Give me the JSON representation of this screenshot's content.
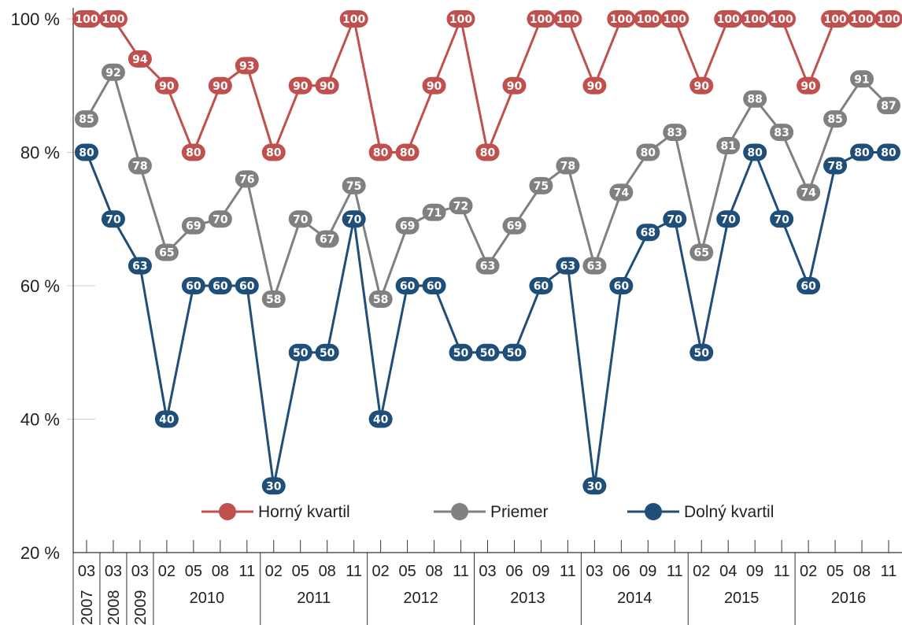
{
  "chart_data": {
    "type": "line",
    "y_axis": {
      "ylim": [
        20,
        100
      ],
      "ticks": [
        {
          "value": 20,
          "label": "20 %"
        },
        {
          "value": 40,
          "label": "40 %"
        },
        {
          "value": 60,
          "label": "60 %"
        },
        {
          "value": 80,
          "label": "80 %"
        },
        {
          "value": 100,
          "label": "100 %"
        }
      ],
      "grid": true
    },
    "categories": [
      "03",
      "03",
      "03",
      "02",
      "05",
      "08",
      "11",
      "02",
      "05",
      "08",
      "11",
      "02",
      "05",
      "08",
      "11",
      "03",
      "06",
      "09",
      "11",
      "03",
      "06",
      "09",
      "11",
      "02",
      "04",
      "09",
      "11",
      "02",
      "05",
      "08",
      "11"
    ],
    "year_groups": [
      {
        "label": "2007",
        "count": 1,
        "rotated": true
      },
      {
        "label": "2008",
        "count": 1,
        "rotated": true
      },
      {
        "label": "2009",
        "count": 1,
        "rotated": true
      },
      {
        "label": "2010",
        "count": 4,
        "rotated": false
      },
      {
        "label": "2011",
        "count": 4,
        "rotated": false
      },
      {
        "label": "2012",
        "count": 4,
        "rotated": false
      },
      {
        "label": "2013",
        "count": 4,
        "rotated": false
      },
      {
        "label": "2014",
        "count": 4,
        "rotated": false
      },
      {
        "label": "2015",
        "count": 4,
        "rotated": false
      },
      {
        "label": "2016",
        "count": 4,
        "rotated": false
      }
    ],
    "series": [
      {
        "name": "Horný kvartil",
        "color": "#c0504d",
        "values": [
          100,
          100,
          94,
          90,
          80,
          90,
          93,
          80,
          90,
          90,
          100,
          80,
          80,
          90,
          100,
          80,
          90,
          100,
          100,
          90,
          100,
          100,
          100,
          90,
          100,
          100,
          100,
          90,
          100,
          100,
          100
        ],
        "labels": [
          "100",
          "100",
          "94",
          "90",
          "80",
          "90",
          "93",
          "80",
          "90",
          "90",
          "100",
          "80",
          "80",
          "90",
          "100",
          "80",
          "90",
          "100",
          "100",
          "90",
          "100",
          "100",
          "100",
          "90",
          "100",
          "100",
          "100",
          "90",
          "100",
          "100",
          "100"
        ]
      },
      {
        "name": "Priemer",
        "color": "#808080",
        "values": [
          85,
          92,
          78,
          65,
          69,
          70,
          76,
          58,
          70,
          67,
          75,
          58,
          69,
          71,
          72,
          63,
          69,
          75,
          78,
          63,
          74,
          80,
          83,
          65,
          81,
          88,
          83,
          74,
          85,
          91,
          87
        ],
        "labels": [
          "85",
          "92",
          "78",
          "65",
          "69",
          "70",
          "76",
          "58",
          "70",
          "67",
          "75",
          "58",
          "69",
          "71",
          "72",
          "63",
          "69",
          "75",
          "78",
          "63",
          "74",
          "80",
          "83",
          "65",
          "81",
          "88",
          "83",
          "74",
          "85",
          "91",
          "87"
        ]
      },
      {
        "name": "Dolný kvartil",
        "color": "#1f4e79",
        "values": [
          80,
          70,
          63,
          40,
          60,
          60,
          60,
          30,
          50,
          50,
          70,
          40,
          60,
          60,
          50,
          50,
          50,
          60,
          63,
          30,
          60,
          68,
          70,
          50,
          70,
          80,
          70,
          60,
          78,
          80,
          80
        ],
        "labels": [
          "80",
          "70",
          "63",
          "40",
          "60",
          "60",
          "60",
          "30",
          "50",
          "50",
          "70",
          "40",
          "60",
          "60",
          "50",
          "50",
          "50",
          "60",
          "63",
          "30",
          "60",
          "68",
          "70",
          "50",
          "70",
          "80",
          "70",
          "60",
          "78",
          "80",
          "80"
        ]
      }
    ],
    "legend": {
      "placement": "bottom-center"
    }
  }
}
